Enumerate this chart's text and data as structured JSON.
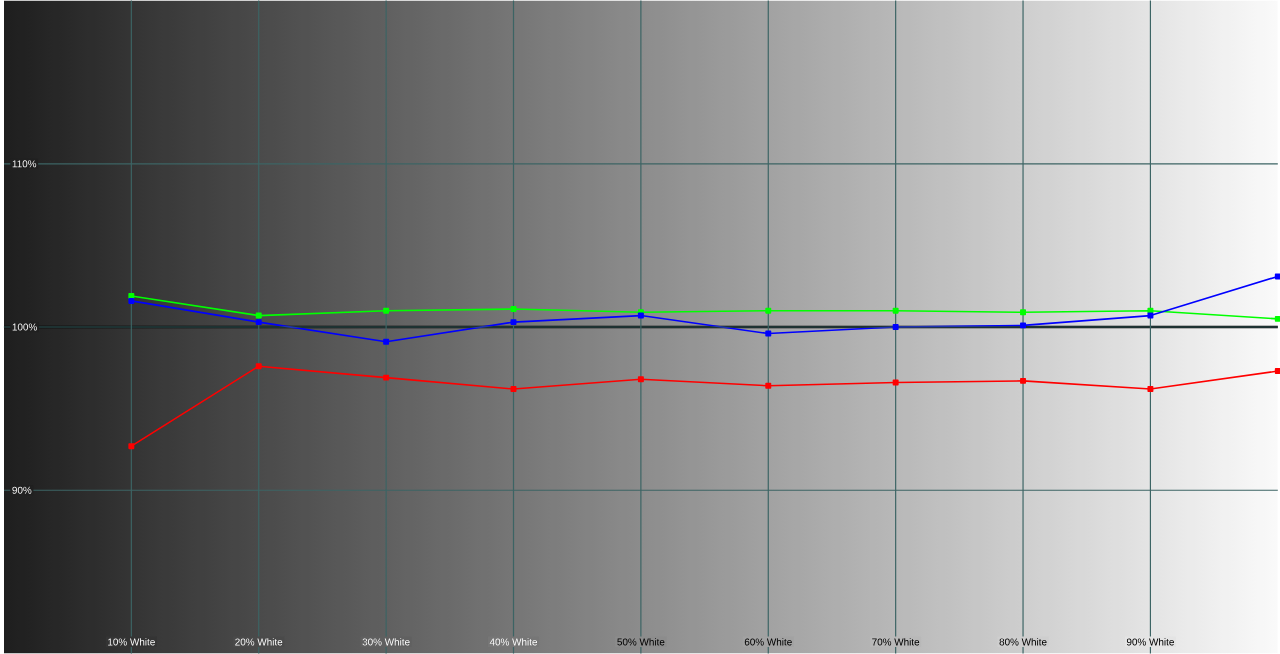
{
  "chart_data": {
    "type": "line",
    "x": [
      10,
      20,
      30,
      40,
      50,
      60,
      70,
      80,
      90,
      100
    ],
    "series": [
      {
        "color": "#00ff00",
        "values": [
          101.9,
          100.7,
          101.0,
          101.1,
          100.9,
          101.0,
          101.0,
          100.9,
          101.0,
          100.5
        ]
      },
      {
        "color": "#0000ff",
        "values": [
          101.6,
          100.3,
          99.1,
          100.3,
          100.7,
          99.6,
          100.0,
          100.1,
          100.7,
          103.1
        ]
      },
      {
        "color": "#ff0000",
        "values": [
          92.7,
          97.6,
          96.9,
          96.2,
          96.8,
          96.4,
          96.6,
          96.7,
          96.2,
          97.3
        ]
      }
    ],
    "xlim": [
      0,
      100
    ],
    "xticks": [
      {
        "value": 10,
        "label": "10% White"
      },
      {
        "value": 20,
        "label": "20% White"
      },
      {
        "value": 30,
        "label": "30% White"
      },
      {
        "value": 40,
        "label": "40% White"
      },
      {
        "value": 50,
        "label": "50% White"
      },
      {
        "value": 60,
        "label": "60% White"
      },
      {
        "value": 70,
        "label": "70% White"
      },
      {
        "value": 80,
        "label": "80% White"
      },
      {
        "value": 90,
        "label": "90% White"
      }
    ],
    "ylim": [
      80,
      120
    ],
    "yticks": [
      {
        "value": 90,
        "label": "90%"
      },
      {
        "value": 100,
        "label": "100%"
      },
      {
        "value": 110,
        "label": "110%"
      }
    ],
    "ref_lines": [
      {
        "axis": "y",
        "value": 100,
        "color": "#000000"
      }
    ],
    "grid": true,
    "marker": "square",
    "line_style": "solid"
  }
}
